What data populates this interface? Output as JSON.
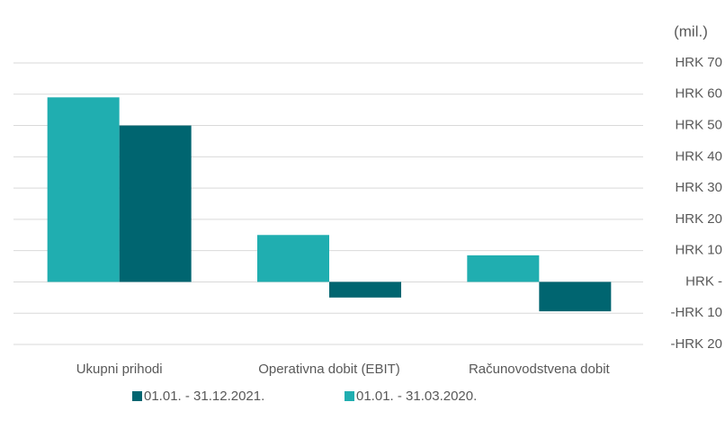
{
  "chart_data": {
    "type": "bar",
    "unit_label": "(mil.)",
    "categories": [
      "Ukupni prihodi",
      "Operativna dobit (EBIT)",
      "Računovodstvena dobit"
    ],
    "series": [
      {
        "name": "01.01. - 31.12.2021.",
        "color": "#006570",
        "values": [
          50,
          -5,
          -9.4
        ]
      },
      {
        "name": "01.01. - 31.03.2020.",
        "color": "#20aeb0",
        "values": [
          59,
          15,
          8.5
        ]
      }
    ],
    "ylim": [
      -20,
      70
    ],
    "yticks": [
      {
        "value": -20,
        "label": "-HRK 20"
      },
      {
        "value": -10,
        "label": "-HRK 10"
      },
      {
        "value": 0,
        "label": "HRK -"
      },
      {
        "value": 10,
        "label": "HRK 10"
      },
      {
        "value": 20,
        "label": "HRK 20"
      },
      {
        "value": 30,
        "label": "HRK 30"
      },
      {
        "value": 40,
        "label": "HRK 40"
      },
      {
        "value": 50,
        "label": "HRK 50"
      },
      {
        "value": 60,
        "label": "HRK 60"
      },
      {
        "value": 70,
        "label": "HRK 70"
      }
    ],
    "grid": true,
    "legend": "bottom"
  }
}
